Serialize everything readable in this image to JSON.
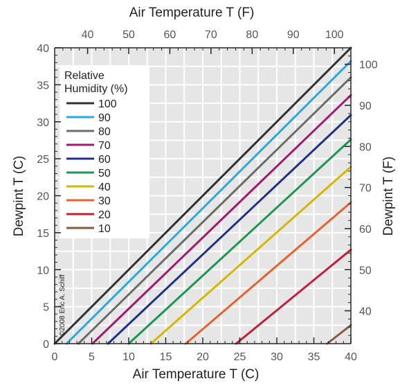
{
  "chart_data": {
    "type": "line",
    "title": "",
    "xlabel": "Air Temperature T (C)",
    "ylabel": "Dewpint T (C)",
    "x2label": "Air Temperature T (F)",
    "y2label": "Dewpint T (F)",
    "xlim": [
      0,
      40
    ],
    "ylim": [
      0,
      40
    ],
    "x_ticks": [
      0,
      5,
      10,
      15,
      20,
      25,
      30,
      35,
      40
    ],
    "y_ticks": [
      0,
      5,
      10,
      15,
      20,
      25,
      30,
      35,
      40
    ],
    "x2_ticks": [
      40,
      50,
      60,
      70,
      80,
      90,
      100
    ],
    "y2_ticks": [
      40,
      50,
      60,
      70,
      80,
      90,
      100
    ],
    "grid": true,
    "legend": {
      "title_line1": "Relative",
      "title_line2": "Humidity (%)",
      "placement": "top-left"
    },
    "copyright": "©2008 Eric A. Schiff",
    "series": [
      {
        "name": "100",
        "color": "#303030",
        "x": [
          0,
          40
        ],
        "y": [
          0,
          40
        ]
      },
      {
        "name": "90",
        "color": "#2aa9e0",
        "x": [
          1.6,
          40
        ],
        "y": [
          0,
          38.2
        ]
      },
      {
        "name": "80",
        "color": "#6b6b6b",
        "x": [
          3.2,
          40
        ],
        "y": [
          0,
          36.0
        ]
      },
      {
        "name": "70",
        "color": "#a3196e",
        "x": [
          5.1,
          40
        ],
        "y": [
          0,
          33.6
        ]
      },
      {
        "name": "60",
        "color": "#1f2f8a",
        "x": [
          7.2,
          40
        ],
        "y": [
          0,
          30.9
        ]
      },
      {
        "name": "50",
        "color": "#1a9650",
        "x": [
          10.0,
          40
        ],
        "y": [
          0,
          27.6
        ]
      },
      {
        "name": "40",
        "color": "#d4b800",
        "x": [
          13.0,
          40
        ],
        "y": [
          0,
          23.9
        ]
      },
      {
        "name": "30",
        "color": "#e8602c",
        "x": [
          17.7,
          40
        ],
        "y": [
          0,
          19.1
        ]
      },
      {
        "name": "20",
        "color": "#c41e3a",
        "x": [
          24.5,
          40
        ],
        "y": [
          0,
          12.7
        ]
      },
      {
        "name": "10",
        "color": "#8b5a3c",
        "x": [
          36.8,
          40
        ],
        "y": [
          0,
          2.5
        ]
      }
    ]
  }
}
